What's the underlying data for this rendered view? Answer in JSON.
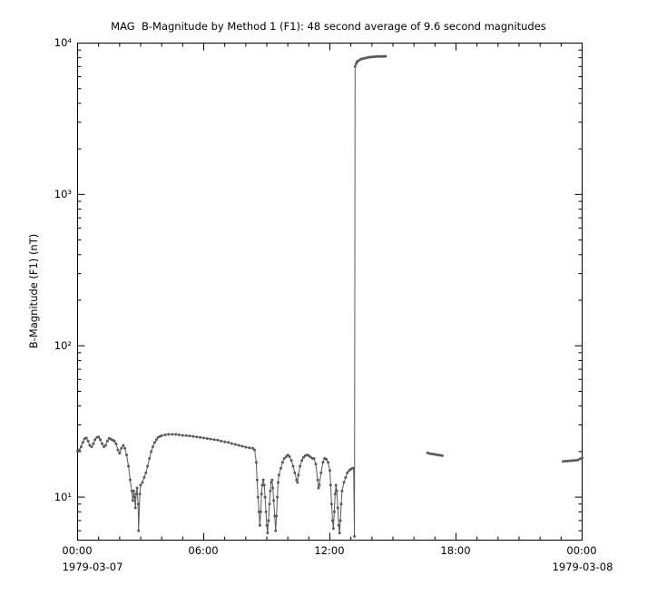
{
  "chart_data": {
    "type": "line",
    "title": "MAG  B-Magnitude by Method 1 (F1): 48 second average of 9.6 second magnitudes",
    "ylabel": "B-Magnitude (F1) (nT)",
    "xlabel": "",
    "yscale": "log",
    "xlim": [
      0,
      24
    ],
    "ylim": [
      5.2,
      10000
    ],
    "x_unit": "hours since 1979-03-07 00:00",
    "x_ticks": {
      "positions_hours": [
        0,
        6,
        12,
        18,
        24
      ],
      "labels": [
        "00:00",
        "06:00",
        "12:00",
        "18:00",
        "00:00"
      ],
      "minor_step_hours": 1
    },
    "y_ticks": {
      "values": [
        10000,
        1000,
        100,
        10
      ],
      "labels": [
        "10⁴",
        "10³",
        "10²",
        "10¹"
      ]
    },
    "dates": {
      "left": "1979-03-07",
      "right": "1979-03-08"
    },
    "style": {
      "line_color": "#5a5a5a",
      "axis_color": "#000000",
      "background": "#ffffff",
      "marker": "dot"
    },
    "segments": [
      {
        "name": "main-day-segment",
        "points": [
          [
            0.0,
            20
          ],
          [
            0.08,
            20.5
          ],
          [
            0.17,
            21.5
          ],
          [
            0.25,
            23
          ],
          [
            0.33,
            24.3
          ],
          [
            0.42,
            24.6
          ],
          [
            0.5,
            23.5
          ],
          [
            0.58,
            22
          ],
          [
            0.67,
            21.5
          ],
          [
            0.75,
            22.5
          ],
          [
            0.83,
            24
          ],
          [
            0.92,
            24.8
          ],
          [
            1.0,
            25
          ],
          [
            1.08,
            24
          ],
          [
            1.17,
            22.5
          ],
          [
            1.25,
            21.5
          ],
          [
            1.33,
            22
          ],
          [
            1.42,
            23.5
          ],
          [
            1.5,
            24.5
          ],
          [
            1.58,
            24.2
          ],
          [
            1.67,
            23.8
          ],
          [
            1.75,
            23.5
          ],
          [
            1.83,
            22.5
          ],
          [
            1.92,
            20.5
          ],
          [
            2.0,
            19.5
          ],
          [
            2.08,
            21
          ],
          [
            2.17,
            22
          ],
          [
            2.25,
            21
          ],
          [
            2.33,
            19
          ],
          [
            2.42,
            16
          ],
          [
            2.5,
            13
          ],
          [
            2.58,
            11
          ],
          [
            2.63,
            9.5
          ],
          [
            2.67,
            11
          ],
          [
            2.71,
            10
          ],
          [
            2.75,
            8.5
          ],
          [
            2.79,
            10.5
          ],
          [
            2.83,
            11.5
          ],
          [
            2.88,
            9
          ],
          [
            2.9,
            6
          ],
          [
            2.96,
            10.5
          ],
          [
            3.0,
            12
          ],
          [
            3.08,
            12.5
          ],
          [
            3.17,
            13.5
          ],
          [
            3.25,
            14.5
          ],
          [
            3.33,
            16
          ],
          [
            3.42,
            18
          ],
          [
            3.5,
            20
          ],
          [
            3.58,
            21.5
          ],
          [
            3.67,
            23
          ],
          [
            3.75,
            24
          ],
          [
            3.83,
            24.8
          ],
          [
            3.92,
            25.2
          ],
          [
            4.0,
            25.5
          ],
          [
            4.17,
            25.8
          ],
          [
            4.33,
            26
          ],
          [
            4.5,
            26
          ],
          [
            4.67,
            26
          ],
          [
            4.83,
            25.8
          ],
          [
            5.0,
            25.6
          ],
          [
            5.17,
            25.5
          ],
          [
            5.33,
            25.4
          ],
          [
            5.5,
            25.2
          ],
          [
            5.67,
            25
          ],
          [
            5.83,
            24.8
          ],
          [
            6.0,
            24.6
          ],
          [
            6.17,
            24.4
          ],
          [
            6.33,
            24.2
          ],
          [
            6.5,
            24
          ],
          [
            6.67,
            23.8
          ],
          [
            6.83,
            23.5
          ],
          [
            7.0,
            23.2
          ],
          [
            7.17,
            23
          ],
          [
            7.33,
            22.6
          ],
          [
            7.5,
            22.3
          ],
          [
            7.67,
            22
          ],
          [
            7.83,
            21.7
          ],
          [
            8.0,
            21.4
          ],
          [
            8.17,
            21.2
          ],
          [
            8.33,
            21
          ],
          [
            8.42,
            20.5
          ],
          [
            8.5,
            17
          ],
          [
            8.54,
            13
          ],
          [
            8.58,
            10
          ],
          [
            8.63,
            8
          ],
          [
            8.67,
            6.5
          ],
          [
            8.71,
            8
          ],
          [
            8.75,
            10.5
          ],
          [
            8.79,
            12
          ],
          [
            8.83,
            13
          ],
          [
            8.88,
            12
          ],
          [
            8.92,
            10
          ],
          [
            8.96,
            8
          ],
          [
            9.0,
            6.5
          ],
          [
            9.04,
            5.8
          ],
          [
            9.08,
            7
          ],
          [
            9.13,
            9
          ],
          [
            9.17,
            11
          ],
          [
            9.21,
            12.5
          ],
          [
            9.25,
            13
          ],
          [
            9.29,
            11.5
          ],
          [
            9.33,
            9.5
          ],
          [
            9.38,
            7.5
          ],
          [
            9.42,
            6
          ],
          [
            9.46,
            7.5
          ],
          [
            9.5,
            10
          ],
          [
            9.54,
            12.5
          ],
          [
            9.58,
            14
          ],
          [
            9.67,
            15.5
          ],
          [
            9.75,
            17
          ],
          [
            9.83,
            18
          ],
          [
            9.92,
            18.5
          ],
          [
            10.0,
            19
          ],
          [
            10.08,
            18.5
          ],
          [
            10.17,
            17.5
          ],
          [
            10.25,
            16
          ],
          [
            10.33,
            14.5
          ],
          [
            10.42,
            13
          ],
          [
            10.46,
            12.5
          ],
          [
            10.5,
            14
          ],
          [
            10.58,
            16
          ],
          [
            10.67,
            17.5
          ],
          [
            10.75,
            18.3
          ],
          [
            10.83,
            18.8
          ],
          [
            10.92,
            19
          ],
          [
            11.0,
            18.8
          ],
          [
            11.08,
            18.4
          ],
          [
            11.17,
            18
          ],
          [
            11.25,
            18
          ],
          [
            11.33,
            16.5
          ],
          [
            11.42,
            13
          ],
          [
            11.46,
            11.5
          ],
          [
            11.5,
            12
          ],
          [
            11.58,
            14.5
          ],
          [
            11.67,
            17
          ],
          [
            11.75,
            18
          ],
          [
            11.83,
            17.8
          ],
          [
            11.92,
            17
          ],
          [
            12.0,
            15
          ],
          [
            12.04,
            12
          ],
          [
            12.08,
            9
          ],
          [
            12.13,
            7
          ],
          [
            12.17,
            6.2
          ],
          [
            12.21,
            8
          ],
          [
            12.25,
            10.5
          ],
          [
            12.29,
            12
          ],
          [
            12.33,
            11
          ],
          [
            12.38,
            8.5
          ],
          [
            12.42,
            6.5
          ],
          [
            12.46,
            5.8
          ],
          [
            12.5,
            7
          ],
          [
            12.54,
            9
          ],
          [
            12.58,
            11
          ],
          [
            12.67,
            12.5
          ],
          [
            12.75,
            13.5
          ],
          [
            12.83,
            14.5
          ],
          [
            12.92,
            15
          ],
          [
            13.0,
            15.3
          ],
          [
            13.08,
            15.5
          ],
          [
            13.13,
            15.5
          ],
          [
            13.17,
            5.5
          ],
          [
            13.2,
            7000
          ],
          [
            13.25,
            7300
          ],
          [
            13.29,
            7500
          ],
          [
            13.33,
            7600
          ],
          [
            13.42,
            7750
          ],
          [
            13.5,
            7850
          ],
          [
            13.58,
            7900
          ],
          [
            13.67,
            7950
          ],
          [
            13.75,
            8000
          ],
          [
            13.83,
            8050
          ],
          [
            13.92,
            8080
          ],
          [
            14.0,
            8100
          ],
          [
            14.08,
            8120
          ],
          [
            14.17,
            8130
          ],
          [
            14.25,
            8150
          ],
          [
            14.33,
            8150
          ],
          [
            14.42,
            8160
          ],
          [
            14.5,
            8160
          ],
          [
            14.58,
            8170
          ],
          [
            14.65,
            8170
          ]
        ]
      },
      {
        "name": "evening-segment",
        "points": [
          [
            16.65,
            19.6
          ],
          [
            16.75,
            19.4
          ],
          [
            16.85,
            19.3
          ],
          [
            16.95,
            19.2
          ],
          [
            17.05,
            19.1
          ],
          [
            17.15,
            19.0
          ],
          [
            17.25,
            18.9
          ],
          [
            17.35,
            18.8
          ]
        ]
      },
      {
        "name": "late-night-segment",
        "points": [
          [
            23.1,
            17.2
          ],
          [
            23.2,
            17.3
          ],
          [
            23.3,
            17.3
          ],
          [
            23.4,
            17.4
          ],
          [
            23.5,
            17.4
          ],
          [
            23.6,
            17.5
          ],
          [
            23.7,
            17.5
          ],
          [
            23.8,
            17.6
          ],
          [
            23.9,
            17.9
          ],
          [
            24.0,
            18.2
          ]
        ]
      }
    ]
  }
}
